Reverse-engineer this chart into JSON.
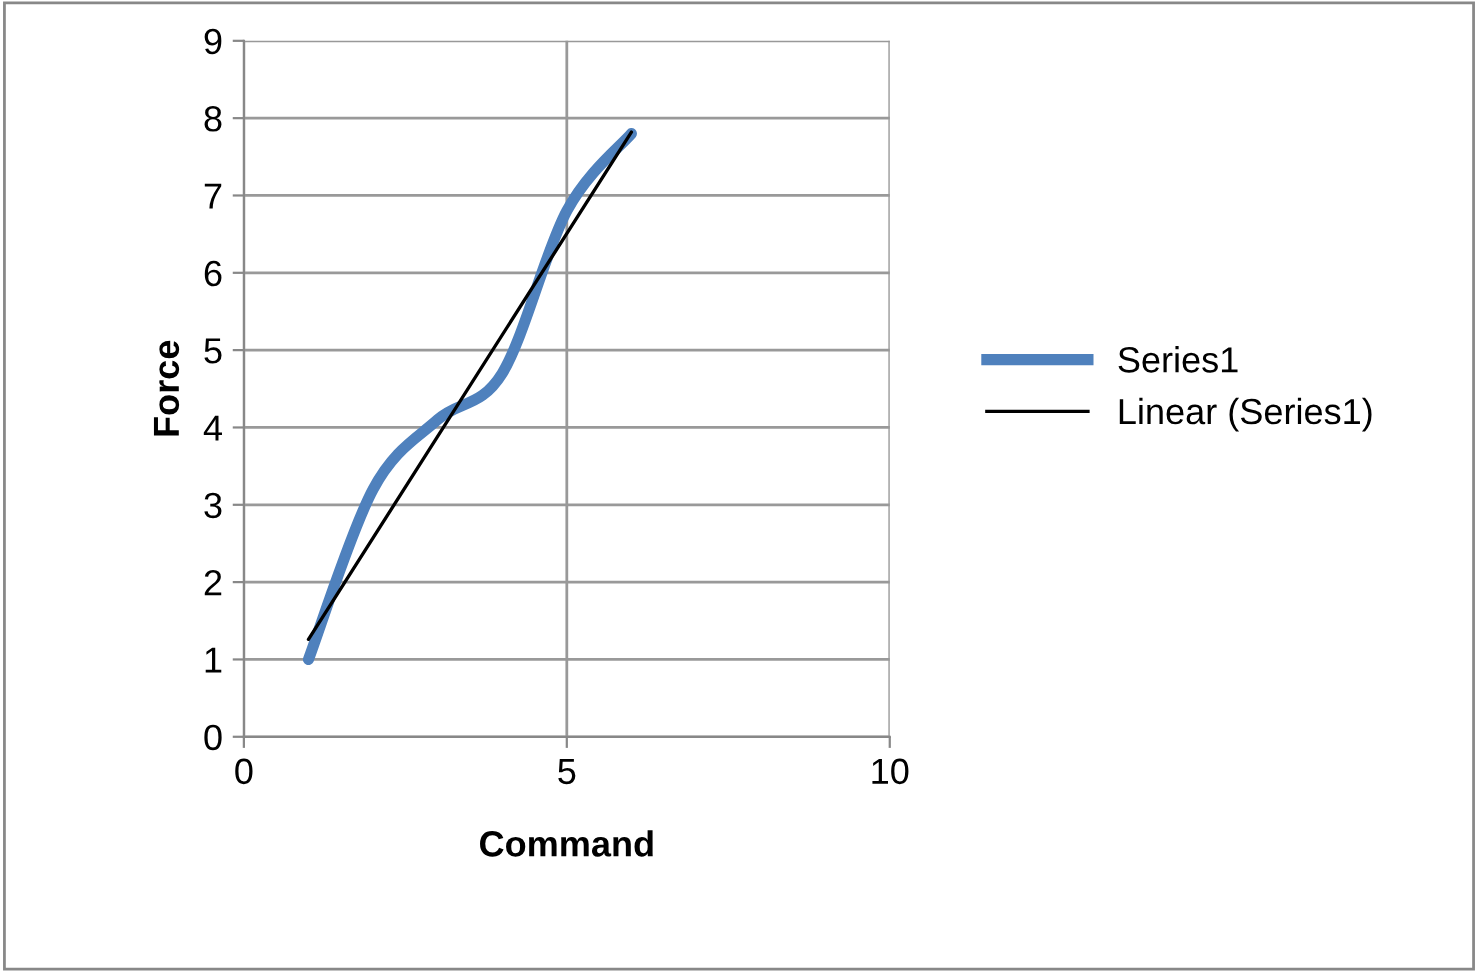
{
  "chart_data": {
    "type": "line",
    "xlabel": "Command",
    "ylabel": "Force",
    "xlim": [
      0,
      10
    ],
    "ylim": [
      0,
      9
    ],
    "xticks": [
      0,
      5,
      10
    ],
    "yticks": [
      0,
      1,
      2,
      3,
      4,
      5,
      6,
      7,
      8,
      9
    ],
    "grid": true,
    "legend": "right",
    "marker": "none",
    "series": [
      {
        "name": "Series1",
        "color": "#4f81bd",
        "x": [
          1,
          2,
          3,
          4,
          5,
          6
        ],
        "values": [
          1.0,
          3.2,
          4.1,
          4.7,
          6.8,
          7.8
        ]
      },
      {
        "name": "Linear (Series1)",
        "color": "#000000",
        "x": [
          1,
          6
        ],
        "values": [
          1.26,
          7.82
        ]
      }
    ]
  }
}
